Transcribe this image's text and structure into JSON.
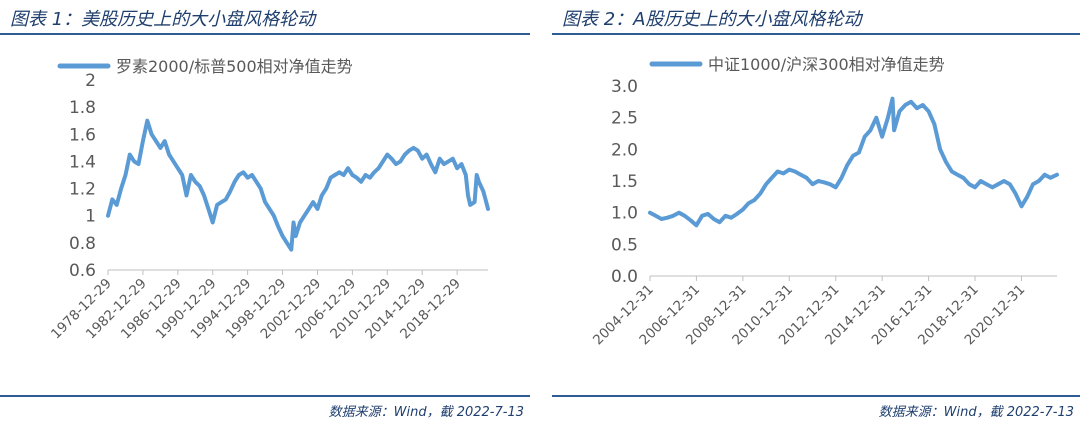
{
  "panels": [
    {
      "title": "图表 1：美股历史上的大小盘风格轮动",
      "source": "数据来源：Wind，截 2022-7-13"
    },
    {
      "title": "图表 2：A股历史上的大小盘风格轮动",
      "source": "数据来源：Wind，截 2022-7-13"
    }
  ],
  "colors": {
    "series": "#5b9bd5",
    "axis": "#bfbfbf",
    "title": "#1f3f6e",
    "rule": "#2e5c97",
    "text": "#595959"
  },
  "chart_data": [
    {
      "type": "line",
      "title": "",
      "xlabel": "",
      "ylabel": "",
      "grid": false,
      "legend_position": "top",
      "ylim": [
        0.6,
        2.0
      ],
      "yticks": [
        "0.6",
        "0.8",
        "1",
        "1.2",
        "1.4",
        "1.6",
        "1.8",
        "2"
      ],
      "xlim": [
        "1978-12-29",
        "2022-07-13"
      ],
      "xticks": [
        "1978-12-29",
        "1982-12-29",
        "1986-12-29",
        "1990-12-29",
        "1994-12-29",
        "1998-12-29",
        "2002-12-29",
        "2006-12-29",
        "2010-12-29",
        "2014-12-29",
        "2018-12-29"
      ],
      "series": [
        {
          "name": "罗素2000/标普500相对净值走势",
          "x": [
            "1978-12-29",
            "1979-06-29",
            "1979-12-29",
            "1980-06-29",
            "1980-12-29",
            "1981-06-29",
            "1981-12-29",
            "1982-06-29",
            "1982-12-29",
            "1983-06-29",
            "1983-12-29",
            "1984-06-29",
            "1984-12-29",
            "1985-06-29",
            "1985-12-29",
            "1986-06-29",
            "1986-12-29",
            "1987-06-29",
            "1987-12-29",
            "1988-06-29",
            "1988-12-29",
            "1989-06-29",
            "1989-12-29",
            "1990-06-29",
            "1990-12-29",
            "1991-06-29",
            "1991-12-29",
            "1992-06-29",
            "1992-12-29",
            "1993-06-29",
            "1993-12-29",
            "1994-06-29",
            "1994-12-29",
            "1995-06-29",
            "1995-12-29",
            "1996-06-29",
            "1996-12-29",
            "1997-06-29",
            "1997-12-29",
            "1998-06-29",
            "1998-12-29",
            "1999-06-29",
            "1999-12-29",
            "2000-03-29",
            "2000-06-29",
            "2000-12-29",
            "2001-06-29",
            "2001-12-29",
            "2002-06-29",
            "2002-12-29",
            "2003-06-29",
            "2003-12-29",
            "2004-06-29",
            "2004-12-29",
            "2005-06-29",
            "2005-12-29",
            "2006-06-29",
            "2006-12-29",
            "2007-06-29",
            "2007-12-29",
            "2008-06-29",
            "2008-12-29",
            "2009-06-29",
            "2009-12-29",
            "2010-06-29",
            "2010-12-29",
            "2011-06-29",
            "2011-12-29",
            "2012-06-29",
            "2012-12-29",
            "2013-06-29",
            "2013-12-29",
            "2014-06-29",
            "2014-12-29",
            "2015-06-29",
            "2015-12-29",
            "2016-06-29",
            "2016-12-29",
            "2017-06-29",
            "2017-12-29",
            "2018-06-29",
            "2018-12-29",
            "2019-06-29",
            "2019-12-29",
            "2020-03-29",
            "2020-06-29",
            "2020-12-29",
            "2021-03-29",
            "2021-06-29",
            "2021-12-29",
            "2022-03-29",
            "2022-07-13"
          ],
          "values": [
            1.0,
            1.12,
            1.08,
            1.2,
            1.3,
            1.45,
            1.4,
            1.38,
            1.55,
            1.7,
            1.6,
            1.55,
            1.5,
            1.55,
            1.45,
            1.4,
            1.35,
            1.3,
            1.15,
            1.3,
            1.25,
            1.22,
            1.15,
            1.05,
            0.95,
            1.08,
            1.1,
            1.12,
            1.18,
            1.25,
            1.3,
            1.32,
            1.28,
            1.3,
            1.25,
            1.2,
            1.1,
            1.05,
            1.0,
            0.92,
            0.85,
            0.8,
            0.75,
            0.95,
            0.85,
            0.95,
            1.0,
            1.05,
            1.1,
            1.05,
            1.15,
            1.2,
            1.28,
            1.3,
            1.32,
            1.3,
            1.35,
            1.3,
            1.28,
            1.25,
            1.3,
            1.28,
            1.32,
            1.35,
            1.4,
            1.45,
            1.42,
            1.38,
            1.4,
            1.45,
            1.48,
            1.5,
            1.48,
            1.42,
            1.45,
            1.38,
            1.32,
            1.42,
            1.38,
            1.4,
            1.42,
            1.35,
            1.38,
            1.3,
            1.15,
            1.08,
            1.1,
            1.3,
            1.25,
            1.18,
            1.12,
            1.05
          ]
        }
      ]
    },
    {
      "type": "line",
      "title": "",
      "xlabel": "",
      "ylabel": "",
      "grid": false,
      "legend_position": "top",
      "ylim": [
        0.0,
        3.0
      ],
      "yticks": [
        "0.0",
        "0.5",
        "1.0",
        "1.5",
        "2.0",
        "2.5",
        "3.0"
      ],
      "xlim": [
        "2004-12-31",
        "2022-07-13"
      ],
      "xticks": [
        "2004-12-31",
        "2006-12-31",
        "2008-12-31",
        "2010-12-31",
        "2012-12-31",
        "2014-12-31",
        "2016-12-31",
        "2018-12-31",
        "2020-12-31"
      ],
      "series": [
        {
          "name": "中证1000/沪深300相对净值走势",
          "x": [
            "2004-12-31",
            "2005-03-31",
            "2005-06-30",
            "2005-09-30",
            "2005-12-31",
            "2006-03-31",
            "2006-06-30",
            "2006-09-30",
            "2006-12-31",
            "2007-03-31",
            "2007-06-30",
            "2007-09-30",
            "2007-12-31",
            "2008-03-31",
            "2008-06-30",
            "2008-09-30",
            "2008-12-31",
            "2009-03-31",
            "2009-06-30",
            "2009-09-30",
            "2009-12-31",
            "2010-03-31",
            "2010-06-30",
            "2010-09-30",
            "2010-12-31",
            "2011-03-31",
            "2011-06-30",
            "2011-09-30",
            "2011-12-31",
            "2012-03-31",
            "2012-06-30",
            "2012-09-30",
            "2012-12-31",
            "2013-03-31",
            "2013-06-30",
            "2013-09-30",
            "2013-12-31",
            "2014-03-31",
            "2014-06-30",
            "2014-09-30",
            "2014-12-31",
            "2015-03-31",
            "2015-06-12",
            "2015-07-08",
            "2015-09-30",
            "2015-12-31",
            "2016-03-31",
            "2016-06-30",
            "2016-09-30",
            "2016-12-31",
            "2017-03-31",
            "2017-06-30",
            "2017-09-30",
            "2017-12-31",
            "2018-03-31",
            "2018-06-30",
            "2018-09-30",
            "2018-12-31",
            "2019-03-31",
            "2019-06-30",
            "2019-09-30",
            "2019-12-31",
            "2020-03-31",
            "2020-06-30",
            "2020-09-30",
            "2020-12-31",
            "2021-03-31",
            "2021-06-30",
            "2021-09-30",
            "2021-12-31",
            "2022-03-31",
            "2022-07-13"
          ],
          "values": [
            1.0,
            0.95,
            0.9,
            0.92,
            0.95,
            1.0,
            0.95,
            0.88,
            0.8,
            0.95,
            0.98,
            0.9,
            0.85,
            0.95,
            0.92,
            0.98,
            1.05,
            1.15,
            1.2,
            1.3,
            1.45,
            1.55,
            1.65,
            1.62,
            1.68,
            1.65,
            1.6,
            1.55,
            1.45,
            1.5,
            1.48,
            1.45,
            1.4,
            1.55,
            1.75,
            1.9,
            1.95,
            2.2,
            2.3,
            2.5,
            2.2,
            2.5,
            2.8,
            2.3,
            2.6,
            2.7,
            2.75,
            2.65,
            2.7,
            2.6,
            2.4,
            2.0,
            1.8,
            1.65,
            1.6,
            1.55,
            1.45,
            1.4,
            1.5,
            1.45,
            1.4,
            1.45,
            1.5,
            1.45,
            1.3,
            1.1,
            1.25,
            1.45,
            1.5,
            1.6,
            1.55,
            1.6
          ]
        }
      ]
    }
  ]
}
